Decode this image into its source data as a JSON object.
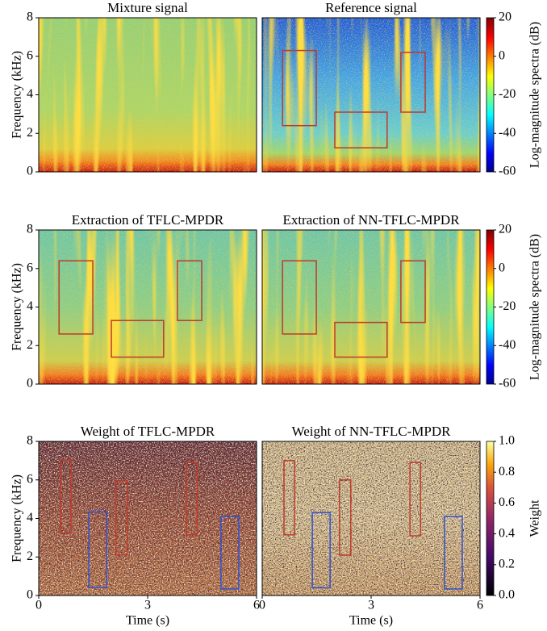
{
  "chart_data": [
    {
      "type": "heatmap",
      "title": "Mixture signal",
      "xlim": [
        0,
        6
      ],
      "ylim": [
        0,
        8
      ],
      "yticks": [
        0,
        2,
        4,
        6,
        8
      ],
      "ylabel": "Frequency (kHz)"
    },
    {
      "type": "heatmap",
      "title": "Reference signal",
      "xlim": [
        0,
        6
      ],
      "ylim": [
        0,
        8
      ],
      "boxes": [
        {
          "x": [
            0.56,
            1.49
          ],
          "y": [
            2.4,
            6.3
          ],
          "color": "#c0392b"
        },
        {
          "x": [
            2.0,
            3.44
          ],
          "y": [
            1.25,
            3.1
          ],
          "color": "#c0392b"
        },
        {
          "x": [
            3.82,
            4.49
          ],
          "y": [
            3.1,
            6.2
          ],
          "color": "#c0392b"
        }
      ],
      "colorbar": {
        "colormap": "jet",
        "lim": [
          -60,
          20
        ],
        "ticks": [
          20,
          0,
          -20,
          -40,
          -60
        ],
        "label": "Log-magnitude spectra (dB)"
      }
    },
    {
      "type": "heatmap",
      "title": "Extraction of TFLC-MPDR",
      "xlim": [
        0,
        6
      ],
      "ylim": [
        0,
        8
      ],
      "yticks": [
        0,
        2,
        4,
        6,
        8
      ],
      "ylabel": "Frequency (kHz)",
      "boxes": [
        {
          "x": [
            0.56,
            1.49
          ],
          "y": [
            2.6,
            6.4
          ],
          "color": "#c0392b"
        },
        {
          "x": [
            2.0,
            3.44
          ],
          "y": [
            1.4,
            3.3
          ],
          "color": "#c0392b"
        },
        {
          "x": [
            3.82,
            4.49
          ],
          "y": [
            3.3,
            6.4
          ],
          "color": "#c0392b"
        }
      ]
    },
    {
      "type": "heatmap",
      "title": "Extraction of NN-TFLC-MPDR",
      "xlim": [
        0,
        6
      ],
      "ylim": [
        0,
        8
      ],
      "boxes": [
        {
          "x": [
            0.56,
            1.49
          ],
          "y": [
            2.6,
            6.4
          ],
          "color": "#c0392b"
        },
        {
          "x": [
            2.0,
            3.44
          ],
          "y": [
            1.4,
            3.2
          ],
          "color": "#c0392b"
        },
        {
          "x": [
            3.82,
            4.49
          ],
          "y": [
            3.2,
            6.4
          ],
          "color": "#c0392b"
        }
      ],
      "colorbar": {
        "colormap": "jet",
        "lim": [
          -60,
          20
        ],
        "ticks": [
          20,
          0,
          -20,
          -40,
          -60
        ],
        "label": "Log-magnitude spectra (dB)"
      }
    },
    {
      "type": "heatmap",
      "title": "Weight of TFLC-MPDR",
      "xlim": [
        0,
        6
      ],
      "ylim": [
        0,
        8
      ],
      "yticks": [
        0,
        2,
        4,
        6,
        8
      ],
      "xticks": [
        0,
        3,
        6
      ],
      "ylabel": "Frequency (kHz)",
      "xlabel": "Time (s)",
      "boxes": [
        {
          "x": [
            0.6,
            0.89
          ],
          "y": [
            3.24,
            7.03
          ],
          "color": "#c0392b"
        },
        {
          "x": [
            2.13,
            2.44
          ],
          "y": [
            2.1,
            5.97
          ],
          "color": "#c0392b"
        },
        {
          "x": [
            4.07,
            4.36
          ],
          "y": [
            3.15,
            6.9
          ],
          "color": "#c0392b"
        },
        {
          "x": [
            1.38,
            1.87
          ],
          "y": [
            0.42,
            4.34
          ],
          "color": "#3050d0"
        },
        {
          "x": [
            5.02,
            5.51
          ],
          "y": [
            0.34,
            4.1
          ],
          "color": "#3050d0"
        }
      ]
    },
    {
      "type": "heatmap",
      "title": "Weight of NN-TFLC-MPDR",
      "xlim": [
        0,
        6
      ],
      "ylim": [
        0,
        8
      ],
      "xticks": [
        0,
        3,
        6
      ],
      "xlabel": "Time (s)",
      "boxes": [
        {
          "x": [
            0.6,
            0.89
          ],
          "y": [
            3.15,
            7.0
          ],
          "color": "#c0392b"
        },
        {
          "x": [
            2.13,
            2.44
          ],
          "y": [
            2.1,
            6.0
          ],
          "color": "#c0392b"
        },
        {
          "x": [
            4.07,
            4.36
          ],
          "y": [
            3.1,
            6.9
          ],
          "color": "#c0392b"
        },
        {
          "x": [
            1.38,
            1.87
          ],
          "y": [
            0.4,
            4.3
          ],
          "color": "#3050d0"
        },
        {
          "x": [
            5.02,
            5.51
          ],
          "y": [
            0.34,
            4.1
          ],
          "color": "#3050d0"
        }
      ],
      "colorbar": {
        "colormap": "inferno",
        "lim": [
          0,
          1
        ],
        "ticks": [
          {
            "value": 1,
            "label": "1.0"
          },
          0.8,
          0.6,
          0.4,
          0.2,
          {
            "value": 0,
            "label": "0.0"
          }
        ],
        "label": "Weight"
      }
    }
  ]
}
